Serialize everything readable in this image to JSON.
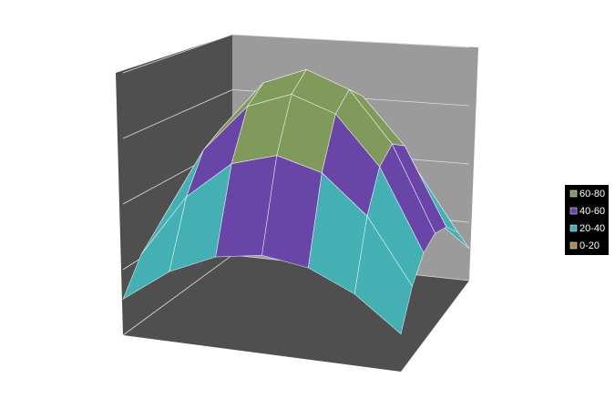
{
  "chart_data": {
    "type": "surface",
    "z": [
      [
        11.0,
        21.1,
        27.2,
        29.3,
        27.2,
        21.1,
        11.0
      ],
      [
        21.1,
        40.7,
        52.4,
        56.3,
        52.4,
        40.7,
        21.1
      ],
      [
        27.2,
        52.4,
        67.6,
        72.6,
        67.6,
        52.4,
        27.2
      ],
      [
        29.3,
        56.3,
        72.6,
        78.0,
        72.6,
        56.3,
        29.3
      ],
      [
        27.2,
        52.4,
        67.6,
        72.6,
        67.6,
        52.4,
        27.2
      ],
      [
        21.1,
        40.7,
        52.4,
        56.3,
        52.4,
        40.7,
        21.1
      ],
      [
        11.0,
        21.1,
        27.2,
        29.3,
        27.2,
        21.1,
        11.0
      ]
    ],
    "zlim": [
      0,
      80
    ],
    "zticks": [
      0,
      20,
      40,
      60,
      80
    ],
    "grid": true,
    "legend": "right",
    "series": [
      {
        "name": "60-80",
        "color": "#7f9a5a"
      },
      {
        "name": "40-60",
        "color": "#6a45a8"
      },
      {
        "name": "20-40",
        "color": "#45b0b4"
      },
      {
        "name": "0-20",
        "color": "#b5834a"
      }
    ]
  }
}
